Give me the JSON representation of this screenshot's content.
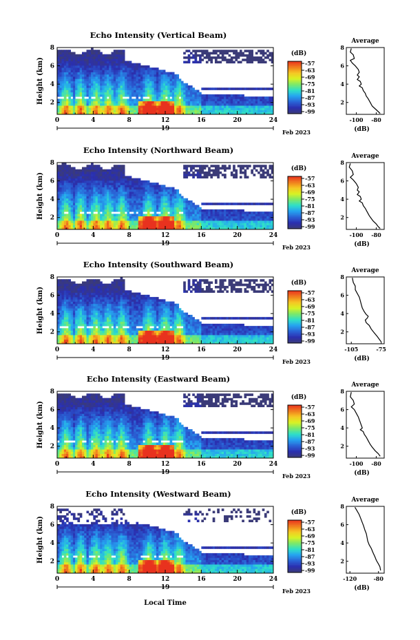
{
  "figure": {
    "xlabel": "Local Time",
    "date_label": "19",
    "month_year": "Feb 2023"
  },
  "colorbar": {
    "unit": "(dB)",
    "ticks": [
      "-57",
      "-63",
      "-69",
      "-75",
      "-81",
      "-87",
      "-93",
      "-99"
    ],
    "colors": [
      "#e8321e",
      "#f07b1e",
      "#f6c623",
      "#d9f223",
      "#7be86a",
      "#2fe0c8",
      "#25a3f0",
      "#2a63d6",
      "#2a2fb0",
      "#3b3b78"
    ]
  },
  "chart_data": [
    {
      "type": "heatmap",
      "title": "Echo Intensity (Vertical Beam)",
      "ylabel": "Height (km)",
      "xlabel": "Local Time",
      "x_ticks": [
        0,
        4,
        8,
        12,
        16,
        20,
        24
      ],
      "y_ticks": [
        2,
        4,
        6,
        8
      ],
      "xlim": [
        0,
        24
      ],
      "ylim": [
        0.7,
        8
      ],
      "color_range_db": [
        -99,
        -57
      ],
      "average_profile": {
        "title": "Average",
        "xlabel": "(dB)",
        "x_ticks": [
          -100,
          -80
        ],
        "xlim": [
          -110,
          -72
        ],
        "y_ticks": [
          2,
          4,
          6,
          8
        ],
        "points": [
          [
            -105,
            7.9
          ],
          [
            -106,
            7.5
          ],
          [
            -103,
            7.2
          ],
          [
            -102,
            6.8
          ],
          [
            -106,
            6.6
          ],
          [
            -104,
            6.3
          ],
          [
            -101,
            6.0
          ],
          [
            -98,
            5.6
          ],
          [
            -97,
            5.3
          ],
          [
            -99,
            5.0
          ],
          [
            -97,
            4.8
          ],
          [
            -99,
            4.5
          ],
          [
            -96,
            4.3
          ],
          [
            -95,
            4.0
          ],
          [
            -97,
            3.8
          ],
          [
            -94,
            3.6
          ],
          [
            -93,
            3.3
          ],
          [
            -91,
            3.0
          ],
          [
            -90,
            2.7
          ],
          [
            -88,
            2.4
          ],
          [
            -86,
            2.0
          ],
          [
            -84,
            1.6
          ],
          [
            -81,
            1.3
          ],
          [
            -78,
            1.0
          ],
          [
            -76,
            0.8
          ]
        ]
      }
    },
    {
      "type": "heatmap",
      "title": "Echo Intensity (Northward Beam)",
      "ylabel": "Height (km)",
      "xlabel": "Local Time",
      "x_ticks": [
        0,
        4,
        8,
        12,
        16,
        20,
        24
      ],
      "y_ticks": [
        2,
        4,
        6,
        8
      ],
      "xlim": [
        0,
        24
      ],
      "ylim": [
        0.7,
        8
      ],
      "color_range_db": [
        -99,
        -57
      ],
      "average_profile": {
        "title": "Average",
        "xlabel": "(dB)",
        "x_ticks": [
          -100,
          -80
        ],
        "xlim": [
          -110,
          -72
        ],
        "y_ticks": [
          2,
          4,
          6,
          8
        ],
        "points": [
          [
            -106,
            7.9
          ],
          [
            -107,
            7.5
          ],
          [
            -104,
            7.1
          ],
          [
            -103,
            6.7
          ],
          [
            -106,
            6.4
          ],
          [
            -103,
            6.1
          ],
          [
            -100,
            5.7
          ],
          [
            -98,
            5.3
          ],
          [
            -99,
            5.0
          ],
          [
            -97,
            4.8
          ],
          [
            -99,
            4.5
          ],
          [
            -96,
            4.3
          ],
          [
            -95,
            4.0
          ],
          [
            -97,
            3.8
          ],
          [
            -94,
            3.6
          ],
          [
            -93,
            3.3
          ],
          [
            -91,
            3.0
          ],
          [
            -89,
            2.6
          ],
          [
            -87,
            2.2
          ],
          [
            -85,
            1.9
          ],
          [
            -83,
            1.6
          ],
          [
            -80,
            1.3
          ],
          [
            -78,
            1.0
          ],
          [
            -76,
            0.8
          ]
        ]
      }
    },
    {
      "type": "heatmap",
      "title": "Echo Intensity (Southward Beam)",
      "ylabel": "Height (km)",
      "xlabel": "Local Time",
      "x_ticks": [
        0,
        4,
        8,
        12,
        16,
        20,
        24
      ],
      "y_ticks": [
        2,
        4,
        6,
        8
      ],
      "xlim": [
        0,
        24
      ],
      "ylim": [
        0.7,
        8
      ],
      "color_range_db": [
        -99,
        -57
      ],
      "average_profile": {
        "title": "Average",
        "xlabel": "(dB)",
        "x_ticks": [
          -105,
          -75
        ],
        "xlim": [
          -110,
          -72
        ],
        "y_ticks": [
          2,
          4,
          6,
          8
        ],
        "points": [
          [
            -104,
            7.9
          ],
          [
            -103,
            7.4
          ],
          [
            -101,
            7.0
          ],
          [
            -101,
            6.6
          ],
          [
            -99,
            6.2
          ],
          [
            -97,
            5.8
          ],
          [
            -96,
            5.4
          ],
          [
            -95,
            5.0
          ],
          [
            -94,
            4.6
          ],
          [
            -92,
            4.2
          ],
          [
            -90,
            3.9
          ],
          [
            -88,
            3.7
          ],
          [
            -89,
            3.5
          ],
          [
            -91,
            3.3
          ],
          [
            -90,
            3.0
          ],
          [
            -87,
            2.7
          ],
          [
            -85,
            2.3
          ],
          [
            -82,
            1.9
          ],
          [
            -79,
            1.5
          ],
          [
            -77,
            1.2
          ],
          [
            -75,
            0.9
          ]
        ]
      }
    },
    {
      "type": "heatmap",
      "title": "Echo Intensity (Eastward Beam)",
      "ylabel": "Height (km)",
      "xlabel": "Local Time",
      "x_ticks": [
        0,
        4,
        8,
        12,
        16,
        20,
        24
      ],
      "y_ticks": [
        2,
        4,
        6,
        8
      ],
      "xlim": [
        0,
        24
      ],
      "ylim": [
        0.7,
        8
      ],
      "color_range_db": [
        -99,
        -57
      ],
      "average_profile": {
        "title": "Average",
        "xlabel": "(dB)",
        "x_ticks": [
          -100,
          -80
        ],
        "xlim": [
          -110,
          -72
        ],
        "y_ticks": [
          2,
          4,
          6,
          8
        ],
        "points": [
          [
            -105,
            7.9
          ],
          [
            -106,
            7.4
          ],
          [
            -103,
            7.0
          ],
          [
            -102,
            6.6
          ],
          [
            -105,
            6.3
          ],
          [
            -102,
            6.0
          ],
          [
            -100,
            5.6
          ],
          [
            -98,
            5.2
          ],
          [
            -97,
            4.9
          ],
          [
            -96,
            4.6
          ],
          [
            -95,
            4.3
          ],
          [
            -94,
            4.0
          ],
          [
            -96,
            3.8
          ],
          [
            -93,
            3.6
          ],
          [
            -92,
            3.3
          ],
          [
            -90,
            3.0
          ],
          [
            -88,
            2.6
          ],
          [
            -86,
            2.2
          ],
          [
            -84,
            1.9
          ],
          [
            -81,
            1.5
          ],
          [
            -78,
            1.2
          ],
          [
            -76,
            0.9
          ]
        ]
      }
    },
    {
      "type": "heatmap",
      "title": "Echo Intensity (Westward Beam)",
      "ylabel": "Height (km)",
      "xlabel": "Local Time",
      "x_ticks": [
        0,
        4,
        8,
        12,
        16,
        20,
        24
      ],
      "y_ticks": [
        2,
        4,
        6,
        8
      ],
      "xlim": [
        0,
        24
      ],
      "ylim": [
        0.7,
        8
      ],
      "color_range_db": [
        -99,
        -57
      ],
      "average_profile": {
        "title": "Average",
        "xlabel": "(dB)",
        "x_ticks": [
          -120,
          -80
        ],
        "xlim": [
          -125,
          -72
        ],
        "y_ticks": [
          2,
          4,
          6,
          8
        ],
        "points": [
          [
            -113,
            7.9
          ],
          [
            -110,
            7.5
          ],
          [
            -107,
            7.1
          ],
          [
            -105,
            6.7
          ],
          [
            -103,
            6.3
          ],
          [
            -101,
            5.9
          ],
          [
            -99,
            5.4
          ],
          [
            -97,
            5.0
          ],
          [
            -96,
            4.6
          ],
          [
            -95,
            4.2
          ],
          [
            -93,
            3.8
          ],
          [
            -90,
            3.4
          ],
          [
            -88,
            3.0
          ],
          [
            -85,
            2.5
          ],
          [
            -83,
            2.1
          ],
          [
            -80,
            1.7
          ],
          [
            -78,
            1.4
          ],
          [
            -77,
            1.0
          ]
        ]
      }
    }
  ]
}
